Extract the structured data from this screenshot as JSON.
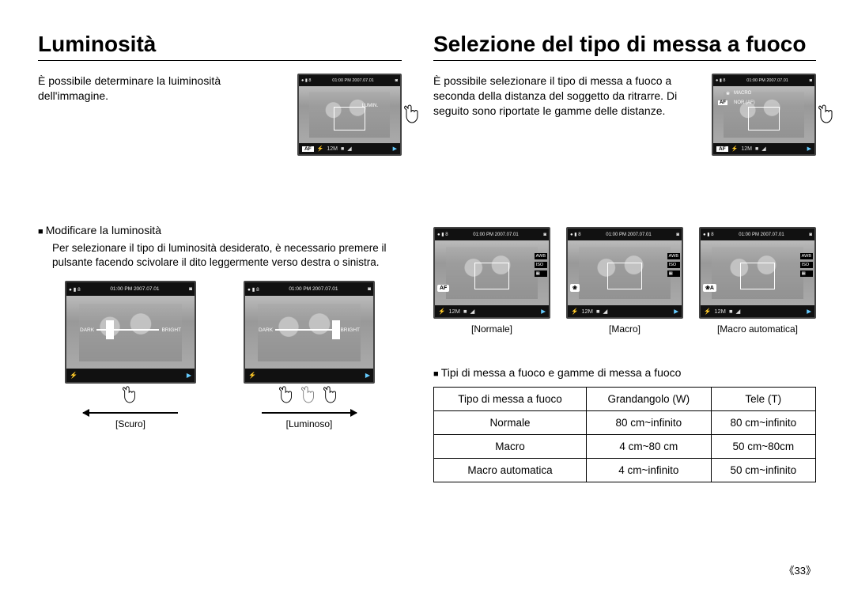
{
  "left": {
    "title": "Luminosità",
    "intro": "È possibile determinare la luiminosità dell'immagine.",
    "cam_timestamp": "01:00 PM 2007.07.01",
    "cam_tag": "LUMIN.",
    "cam_af": "AF",
    "cam_mode": "12M",
    "section_header": "Modificare la luminosità",
    "section_body": "Per selezionare il tipo di luminosità desiderato, è necessario premere il pulsante facendo scivolare il dito leggermente verso destra o sinistra.",
    "slider_left": "DARK",
    "slider_right": "BRIGHT",
    "caption_left": "[Scuro]",
    "caption_right": "[Luminoso]"
  },
  "right": {
    "title": "Selezione del tipo di messa a fuoco",
    "intro": "È possibile selezionare il tipo di messa a fuoco a seconda della distanza del soggetto da ritrarre. Di seguito sono riportate le gamme delle distanze.",
    "cam_timestamp": "01:00 PM 2007.07.01",
    "side_macro": "MACRO",
    "side_nor": "NOR (AF)",
    "cam_af": "AF",
    "cam_mode": "12M",
    "triple": [
      {
        "caption": "[Normale]",
        "pill": "AF"
      },
      {
        "caption": "[Macro]",
        "pill": "❀"
      },
      {
        "caption": "[Macro automatica]",
        "pill": "❀A"
      }
    ],
    "section_header": "Tipi di messa a fuoco e gamme di messa a fuoco",
    "table": {
      "headers": [
        "Tipo di messa a fuoco",
        "Grandangolo (W)",
        "Tele (T)"
      ],
      "rows": [
        [
          "Normale",
          "80 cm~infinito",
          "80 cm~infinito"
        ],
        [
          "Macro",
          "4 cm~80 cm",
          "50 cm~80cm"
        ],
        [
          "Macro automatica",
          "4 cm~infinito",
          "50 cm~infinito"
        ]
      ]
    }
  },
  "page_number": "《33》"
}
